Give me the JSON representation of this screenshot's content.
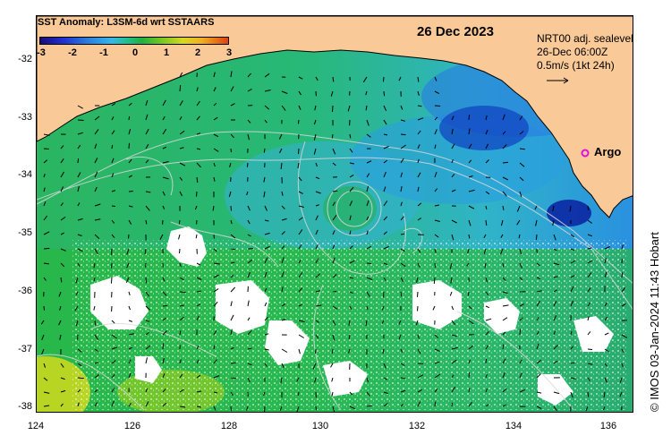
{
  "title": "SST Anomaly: L3SM-6d wrt SSTAARS",
  "date": "26 Dec 2023",
  "legend": {
    "line1": "NRT00 adj. sealevel",
    "line2": "26-Dec 06:00Z",
    "line3": "0.5m/s (1kt 24h)"
  },
  "marker_label": "Argo",
  "credit": "© IMOS 03-Jan-2024 11:43 Hobart",
  "colorbar_ticks": [
    "-3",
    "-2",
    "-1",
    "0",
    "1",
    "2",
    "3"
  ],
  "y_ticks": [
    "-32",
    "-33",
    "-34",
    "-35",
    "-36",
    "-37",
    "-38"
  ],
  "x_ticks": [
    "124",
    "126",
    "128",
    "130",
    "132",
    "134",
    "136"
  ],
  "colors": {
    "land": "#f9c998",
    "sea_base": "#22bb55",
    "cool": "#2aa0e0",
    "cold": "#1030b0",
    "warm": "#d8e020",
    "marker": "#e010e0"
  }
}
